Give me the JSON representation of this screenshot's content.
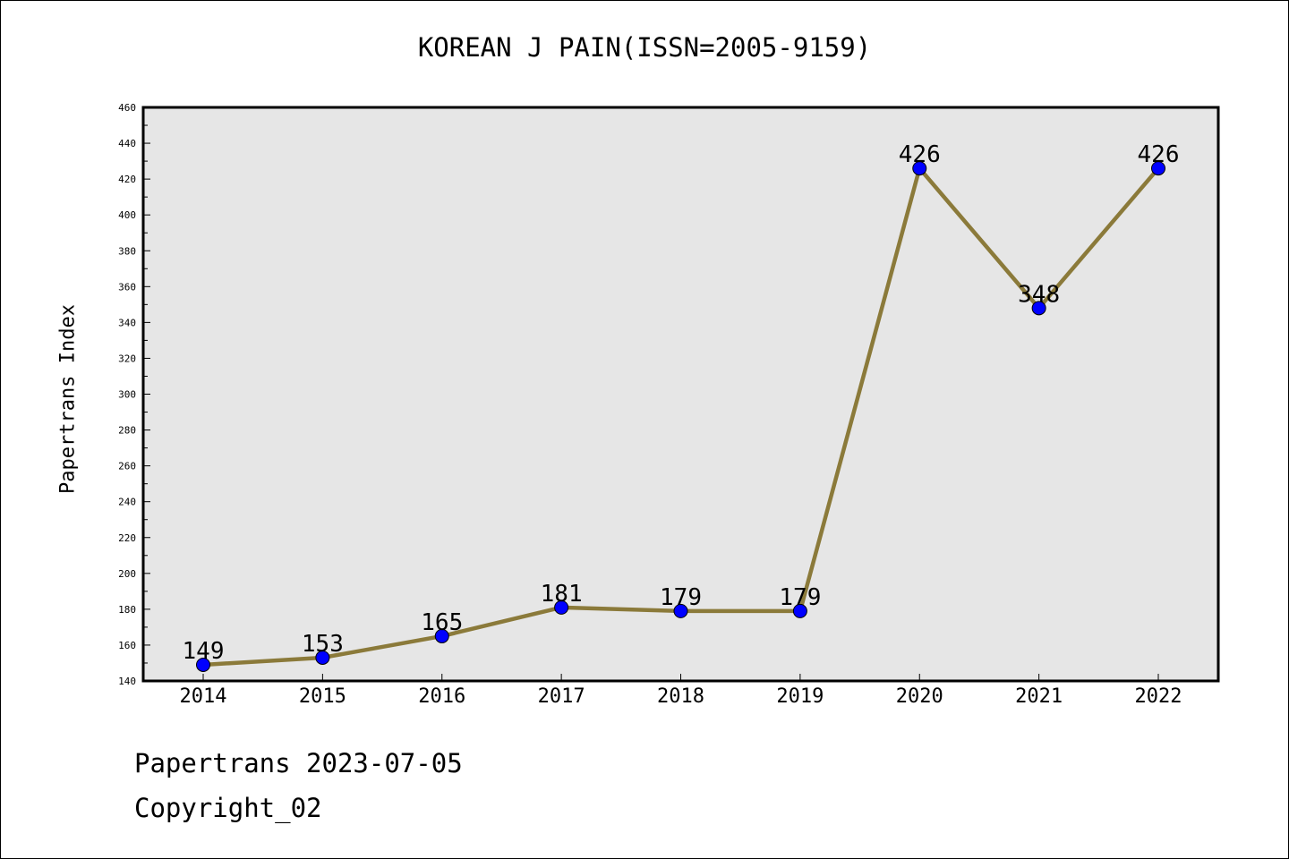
{
  "chart_data": {
    "type": "line",
    "title": "KOREAN J PAIN(ISSN=2005-9159)",
    "xlabel": "",
    "ylabel": "Papertrans Index",
    "categories": [
      "2014",
      "2015",
      "2016",
      "2017",
      "2018",
      "2019",
      "2020",
      "2021",
      "2022"
    ],
    "series": [
      {
        "values": [
          149,
          153,
          165,
          181,
          179,
          179,
          426,
          348,
          426
        ]
      }
    ],
    "ylim": [
      140,
      460
    ],
    "ytick_step": 20,
    "yticks": [
      "140",
      "160",
      "180",
      "200",
      "220",
      "240",
      "260",
      "280",
      "300",
      "320",
      "340",
      "360",
      "380",
      "400",
      "420",
      "440",
      "460"
    ],
    "data_labels": [
      "149",
      "153",
      "165",
      "181",
      "179",
      "179",
      "426",
      "348",
      "426"
    ],
    "grid": false,
    "line_color": "#8b7a3a",
    "marker_color": "#0000ff",
    "plot_background": "#e6e6e6"
  },
  "footer": {
    "date_line": "Papertrans 2023-07-05",
    "copyright": "Copyright_02"
  }
}
